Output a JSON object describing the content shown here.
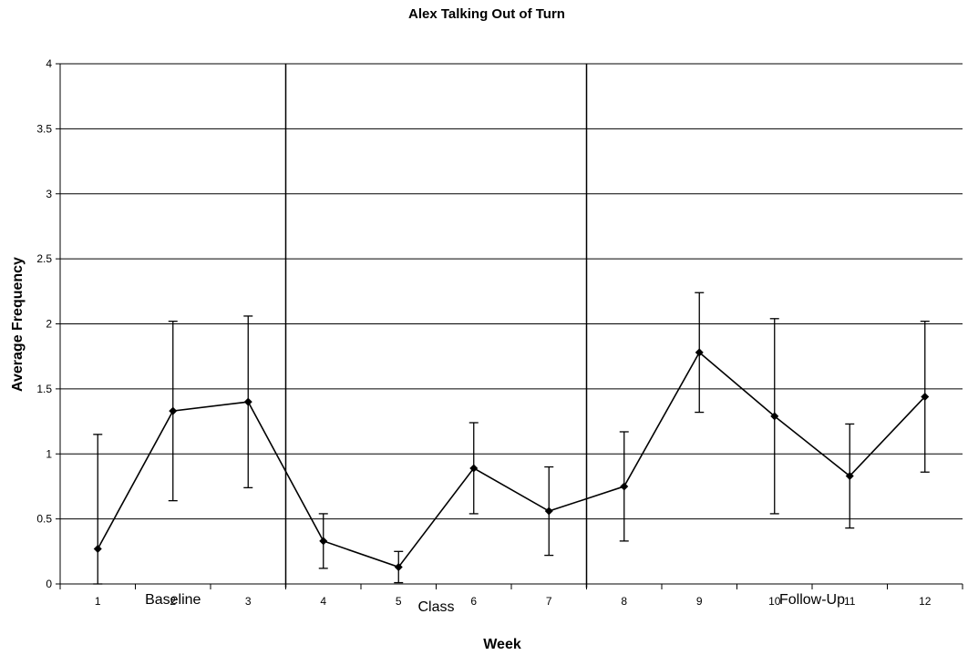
{
  "chart_data": {
    "type": "line",
    "title": "Alex Talking Out of Turn",
    "xlabel": "Week",
    "ylabel": "Average Frequency",
    "x": [
      1,
      2,
      3,
      4,
      5,
      6,
      7,
      8,
      9,
      10,
      11,
      12
    ],
    "xticks": [
      "1",
      "2",
      "3",
      "4",
      "5",
      "6",
      "7",
      "8",
      "9",
      "10",
      "11",
      "12"
    ],
    "ylim": [
      0,
      4
    ],
    "yticks": [
      "0",
      "0.5",
      "1",
      "1.5",
      "2",
      "2.5",
      "3",
      "3.5",
      "4"
    ],
    "grid": "horizontal",
    "series": [
      {
        "values": [
          0.27,
          1.33,
          1.4,
          0.33,
          0.13,
          0.89,
          0.56,
          0.75,
          1.78,
          1.29,
          0.83,
          1.44
        ],
        "error_low": [
          0.0,
          0.64,
          0.74,
          0.12,
          0.01,
          0.54,
          0.22,
          0.33,
          1.32,
          0.54,
          0.43,
          0.86
        ],
        "error_high": [
          1.15,
          2.02,
          2.06,
          0.54,
          0.25,
          1.24,
          0.9,
          1.17,
          2.24,
          2.04,
          1.23,
          2.02
        ]
      }
    ],
    "phases": [
      {
        "label": "Baseline",
        "weeks": [
          1,
          3
        ]
      },
      {
        "label": "Class",
        "weeks": [
          4,
          7
        ]
      },
      {
        "label": "Follow-Up",
        "weeks": [
          8,
          12
        ]
      }
    ],
    "phase_dividers_after_week": [
      3,
      7
    ]
  }
}
